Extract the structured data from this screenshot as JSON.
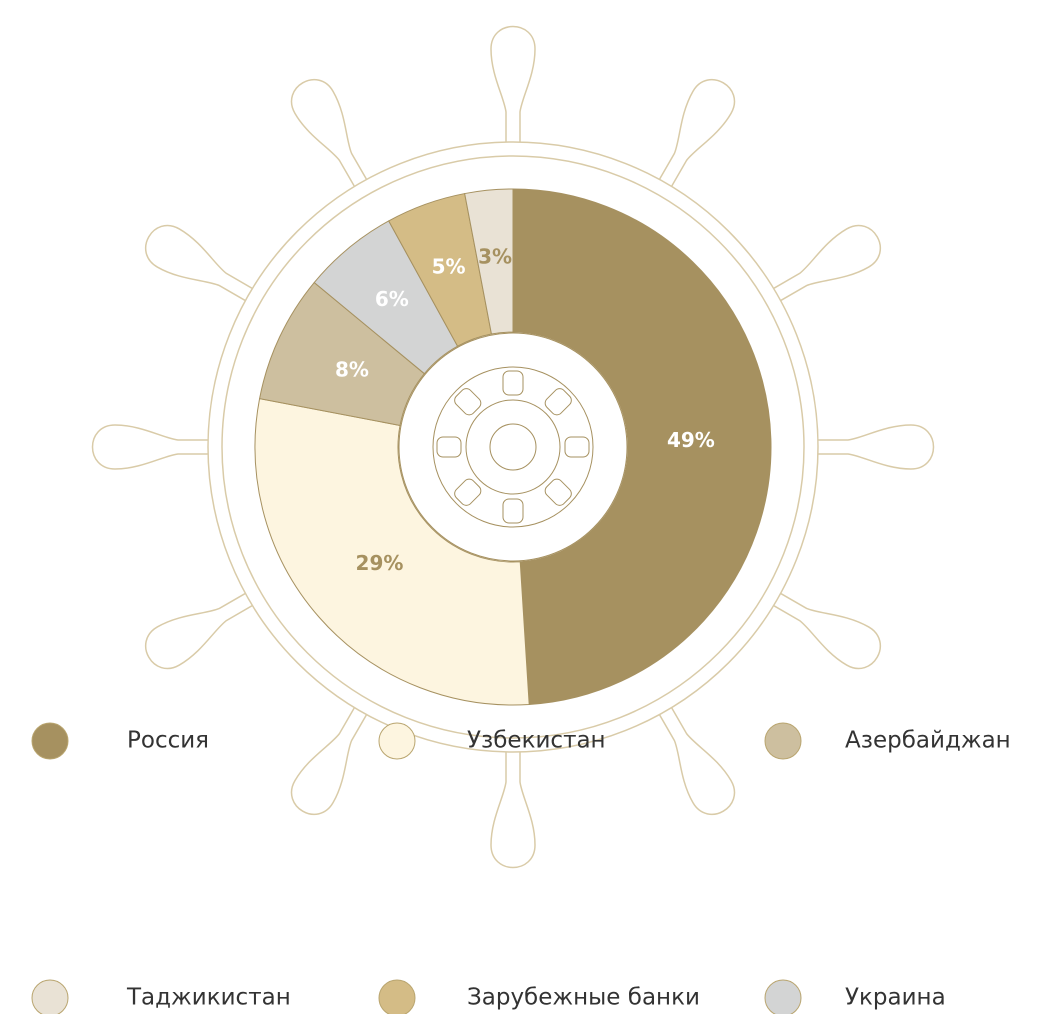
{
  "chart_data": {
    "type": "donut",
    "categories": [
      "Россия",
      "Узбекистан",
      "Азербайджан",
      "Украина",
      "Зарубежные банки",
      "Таджикистан"
    ],
    "values": [
      49,
      29,
      8,
      6,
      5,
      3
    ],
    "value_labels": [
      "49%",
      "29%",
      "8%",
      "6%",
      "5%",
      "3%"
    ],
    "colors": [
      "#a69160",
      "#fdf5e0",
      "#cdbf9f",
      "#d3d4d4",
      "#d4bc86",
      "#e9e2d5"
    ],
    "legend": "bottom"
  }
}
